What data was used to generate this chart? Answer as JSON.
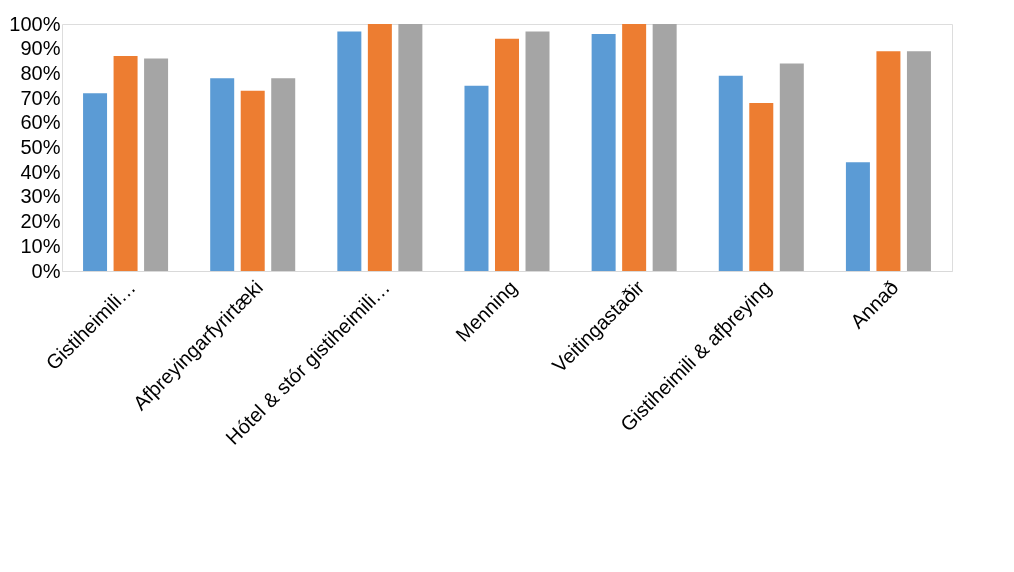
{
  "chart_data": {
    "type": "bar",
    "categories": [
      "Gistiheimili…",
      "Afþreyingarfyrirtæki",
      "Hótel & stór gistiheimili…",
      "Menning",
      "Veitingastaðir",
      "Gistiheimili & afþreying",
      "Annað"
    ],
    "series": [
      {
        "color": "#5b9bd5",
        "values": [
          72,
          78,
          97,
          75,
          96,
          79,
          44
        ]
      },
      {
        "color": "#ed7d31",
        "values": [
          87,
          73,
          100,
          94,
          100,
          68,
          89
        ]
      },
      {
        "color": "#a5a5a5",
        "values": [
          86,
          78,
          100,
          97,
          100,
          84,
          89
        ]
      }
    ],
    "ylim": [
      0,
      100
    ],
    "yticks": [
      {
        "value": 0,
        "label": "0%"
      },
      {
        "value": 10,
        "label": "10%"
      },
      {
        "value": 20,
        "label": "20%"
      },
      {
        "value": 30,
        "label": "30%"
      },
      {
        "value": 40,
        "label": "40%"
      },
      {
        "value": 50,
        "label": "50%"
      },
      {
        "value": 60,
        "label": "60%"
      },
      {
        "value": 70,
        "label": "70%"
      },
      {
        "value": 80,
        "label": "80%"
      },
      {
        "value": 90,
        "label": "90%"
      },
      {
        "value": 100,
        "label": "100%"
      }
    ],
    "grid": false,
    "legend": false
  }
}
